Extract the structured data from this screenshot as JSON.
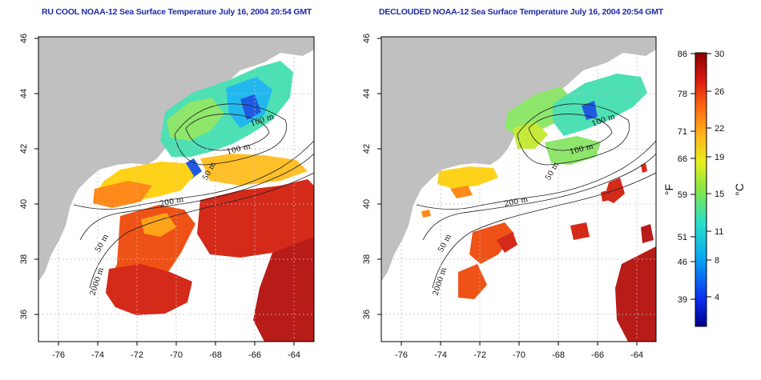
{
  "panels": [
    {
      "title": "RU COOL NOAA-12 Sea Surface Temperature July 16, 2004 20:54 GMT"
    },
    {
      "title": "DECLOUDED NOAA-12 Sea Surface Temperature July 16, 2004 20:54 GMT"
    }
  ],
  "axes": {
    "lon_ticks": [
      "-76",
      "-74",
      "-72",
      "-70",
      "-68",
      "-66",
      "-64"
    ],
    "lat_ticks": [
      "46",
      "44",
      "42",
      "40",
      "38",
      "36"
    ]
  },
  "isobath_labels": [
    "100 m",
    "100 m",
    "50 m",
    "200 m",
    "50 m",
    "2000 m"
  ],
  "colorbar": {
    "unit_f": "°F",
    "unit_c": "°C",
    "f_ticks": [
      "86",
      "78",
      "71",
      "66",
      "59",
      "51",
      "46",
      "39"
    ],
    "c_ticks": [
      "30",
      "26",
      "22",
      "19",
      "15",
      "11",
      "8",
      "4"
    ]
  },
  "colors": {
    "title": "#1c2ba8",
    "land": "#c0c0c0",
    "warm": "#d42a1a",
    "cold": "#1f5ae0"
  }
}
